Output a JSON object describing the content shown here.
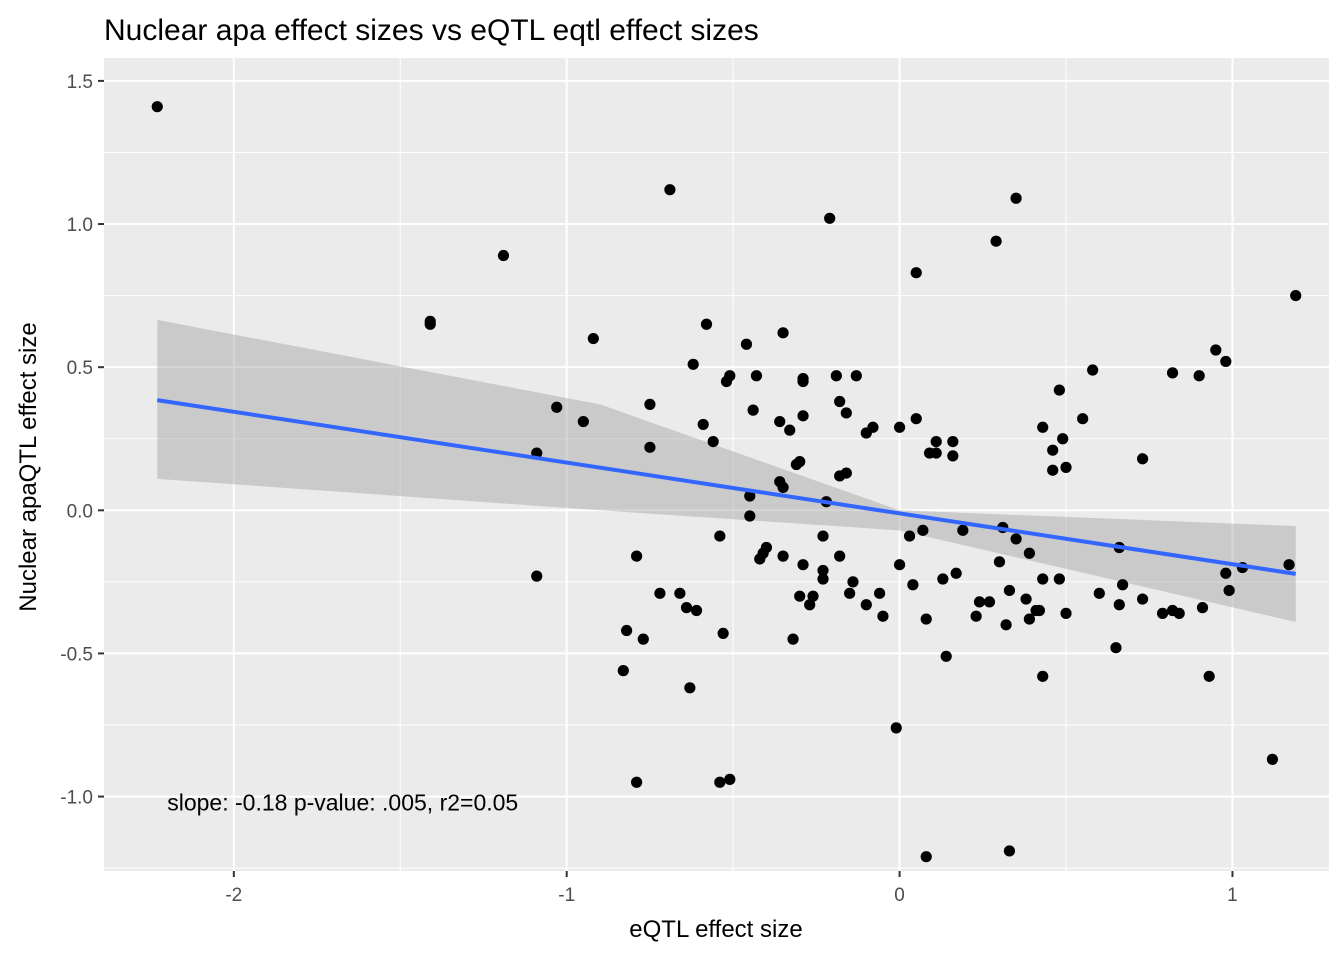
{
  "chart_data": {
    "type": "scatter",
    "title": "Nuclear apa effect sizes vs eQTL eqtl effect sizes",
    "xlabel": "eQTL effect size",
    "ylabel": "Nuclear apaQTL effect size",
    "xlim": [
      -2.39,
      1.29
    ],
    "ylim": [
      -1.26,
      1.58
    ],
    "x_major_ticks": [
      -2,
      -1,
      0,
      1
    ],
    "x_tick_labels": [
      "-2",
      "-1",
      "0",
      "1"
    ],
    "x_minor_ticks": [
      -1.5,
      -0.5,
      0.5
    ],
    "y_major_ticks": [
      -1.0,
      -0.5,
      0.0,
      0.5,
      1.0,
      1.5
    ],
    "y_tick_labels": [
      "-1.0",
      "-0.5",
      "0.0",
      "0.5",
      "1.0",
      "1.5"
    ],
    "y_minor_ticks": [
      -1.25,
      -0.75,
      -0.25,
      0.25,
      0.75,
      1.25
    ],
    "annotation": "slope: -0.18 p-value: .005, r2=0.05",
    "annotation_pos": {
      "x": -2.2,
      "y": -1.02
    },
    "fit": {
      "method": "lm",
      "x_range": [
        -2.23,
        1.19
      ],
      "y_start": 0.385,
      "y_end": -0.222,
      "ci_upper": [
        [
          -2.23,
          0.665
        ],
        [
          -0.9,
          0.37
        ],
        [
          0.0,
          0.0
        ],
        [
          1.19,
          -0.055
        ]
      ],
      "ci_lower": [
        [
          -2.23,
          0.11
        ],
        [
          -0.9,
          0.0
        ],
        [
          0.0,
          -0.07
        ],
        [
          1.19,
          -0.39
        ]
      ],
      "line_color": "#3366ff",
      "ribbon_color": "#999999"
    },
    "point_color": "#000000",
    "panel_color": "#ebebeb",
    "grid_color": "#ffffff",
    "points": [
      [
        -2.23,
        1.41
      ],
      [
        -1.41,
        0.66
      ],
      [
        -1.41,
        0.65
      ],
      [
        -1.19,
        0.89
      ],
      [
        -1.09,
        0.2
      ],
      [
        -1.09,
        -0.23
      ],
      [
        -1.03,
        0.36
      ],
      [
        -0.95,
        0.31
      ],
      [
        -0.92,
        0.6
      ],
      [
        -0.79,
        -0.16
      ],
      [
        -0.82,
        -0.42
      ],
      [
        -0.83,
        -0.56
      ],
      [
        -0.77,
        -0.45
      ],
      [
        -0.75,
        0.37
      ],
      [
        -0.75,
        0.22
      ],
      [
        -0.72,
        -0.29
      ],
      [
        -0.69,
        1.12
      ],
      [
        -0.66,
        -0.29
      ],
      [
        -0.64,
        -0.34
      ],
      [
        -0.63,
        -0.62
      ],
      [
        -0.62,
        0.51
      ],
      [
        -0.61,
        -0.35
      ],
      [
        -0.59,
        0.3
      ],
      [
        -0.58,
        0.65
      ],
      [
        -0.56,
        0.24
      ],
      [
        -0.54,
        -0.09
      ],
      [
        -0.53,
        -0.43
      ],
      [
        -0.52,
        0.45
      ],
      [
        -0.51,
        0.47
      ],
      [
        -0.54,
        -0.95
      ],
      [
        -0.51,
        -0.94
      ],
      [
        -0.79,
        -0.95
      ],
      [
        -0.46,
        0.58
      ],
      [
        -0.45,
        0.05
      ],
      [
        -0.45,
        -0.02
      ],
      [
        -0.44,
        0.35
      ],
      [
        -0.43,
        0.47
      ],
      [
        -0.42,
        -0.17
      ],
      [
        -0.41,
        -0.15
      ],
      [
        -0.4,
        -0.13
      ],
      [
        -0.36,
        0.1
      ],
      [
        -0.36,
        0.31
      ],
      [
        -0.35,
        0.62
      ],
      [
        -0.35,
        0.08
      ],
      [
        -0.35,
        -0.16
      ],
      [
        -0.33,
        0.28
      ],
      [
        -0.32,
        -0.45
      ],
      [
        -0.31,
        0.16
      ],
      [
        -0.3,
        0.17
      ],
      [
        -0.3,
        -0.3
      ],
      [
        -0.29,
        0.46
      ],
      [
        -0.29,
        0.45
      ],
      [
        -0.29,
        0.33
      ],
      [
        -0.29,
        -0.19
      ],
      [
        -0.27,
        -0.33
      ],
      [
        -0.26,
        -0.3
      ],
      [
        -0.23,
        -0.09
      ],
      [
        -0.23,
        -0.21
      ],
      [
        -0.23,
        -0.24
      ],
      [
        -0.22,
        0.03
      ],
      [
        -0.21,
        1.02
      ],
      [
        -0.19,
        0.47
      ],
      [
        -0.18,
        0.38
      ],
      [
        -0.18,
        0.12
      ],
      [
        -0.18,
        -0.16
      ],
      [
        -0.16,
        0.34
      ],
      [
        -0.16,
        0.13
      ],
      [
        -0.15,
        -0.29
      ],
      [
        -0.14,
        -0.25
      ],
      [
        -0.13,
        0.47
      ],
      [
        -0.1,
        0.27
      ],
      [
        -0.1,
        -0.33
      ],
      [
        -0.08,
        0.29
      ],
      [
        -0.06,
        -0.29
      ],
      [
        -0.05,
        -0.37
      ],
      [
        -0.01,
        -0.76
      ],
      [
        0.0,
        0.29
      ],
      [
        0.0,
        -0.19
      ],
      [
        0.03,
        -0.09
      ],
      [
        0.04,
        -0.26
      ],
      [
        0.05,
        0.32
      ],
      [
        0.05,
        0.83
      ],
      [
        0.07,
        -0.07
      ],
      [
        0.08,
        -0.38
      ],
      [
        0.09,
        0.2
      ],
      [
        0.08,
        -1.21
      ],
      [
        0.11,
        0.24
      ],
      [
        0.11,
        0.2
      ],
      [
        0.13,
        -0.24
      ],
      [
        0.14,
        -0.51
      ],
      [
        0.16,
        0.24
      ],
      [
        0.16,
        0.19
      ],
      [
        0.17,
        -0.22
      ],
      [
        0.19,
        -0.07
      ],
      [
        0.23,
        -0.37
      ],
      [
        0.24,
        -0.32
      ],
      [
        0.27,
        -0.32
      ],
      [
        0.29,
        0.94
      ],
      [
        0.3,
        -0.18
      ],
      [
        0.31,
        -0.06
      ],
      [
        0.32,
        -0.4
      ],
      [
        0.33,
        -0.28
      ],
      [
        0.33,
        -1.19
      ],
      [
        0.35,
        1.09
      ],
      [
        0.35,
        -0.1
      ],
      [
        0.38,
        -0.31
      ],
      [
        0.39,
        -0.15
      ],
      [
        0.39,
        -0.38
      ],
      [
        0.41,
        -0.35
      ],
      [
        0.42,
        -0.35
      ],
      [
        0.43,
        0.29
      ],
      [
        0.43,
        -0.24
      ],
      [
        0.43,
        -0.58
      ],
      [
        0.46,
        0.21
      ],
      [
        0.46,
        0.14
      ],
      [
        0.48,
        0.42
      ],
      [
        0.48,
        -0.24
      ],
      [
        0.49,
        0.25
      ],
      [
        0.5,
        0.15
      ],
      [
        0.5,
        -0.36
      ],
      [
        0.55,
        0.32
      ],
      [
        0.58,
        0.49
      ],
      [
        0.6,
        -0.29
      ],
      [
        0.65,
        -0.48
      ],
      [
        0.66,
        -0.13
      ],
      [
        0.66,
        -0.33
      ],
      [
        0.67,
        -0.26
      ],
      [
        0.73,
        0.18
      ],
      [
        0.73,
        -0.31
      ],
      [
        0.79,
        -0.36
      ],
      [
        0.82,
        -0.35
      ],
      [
        0.82,
        0.48
      ],
      [
        0.84,
        -0.36
      ],
      [
        0.9,
        0.47
      ],
      [
        0.91,
        -0.34
      ],
      [
        0.93,
        -0.58
      ],
      [
        0.95,
        0.56
      ],
      [
        0.98,
        0.52
      ],
      [
        0.98,
        -0.22
      ],
      [
        0.99,
        -0.28
      ],
      [
        1.03,
        -0.2
      ],
      [
        1.12,
        -0.87
      ],
      [
        1.17,
        -0.19
      ],
      [
        1.19,
        0.75
      ]
    ]
  }
}
